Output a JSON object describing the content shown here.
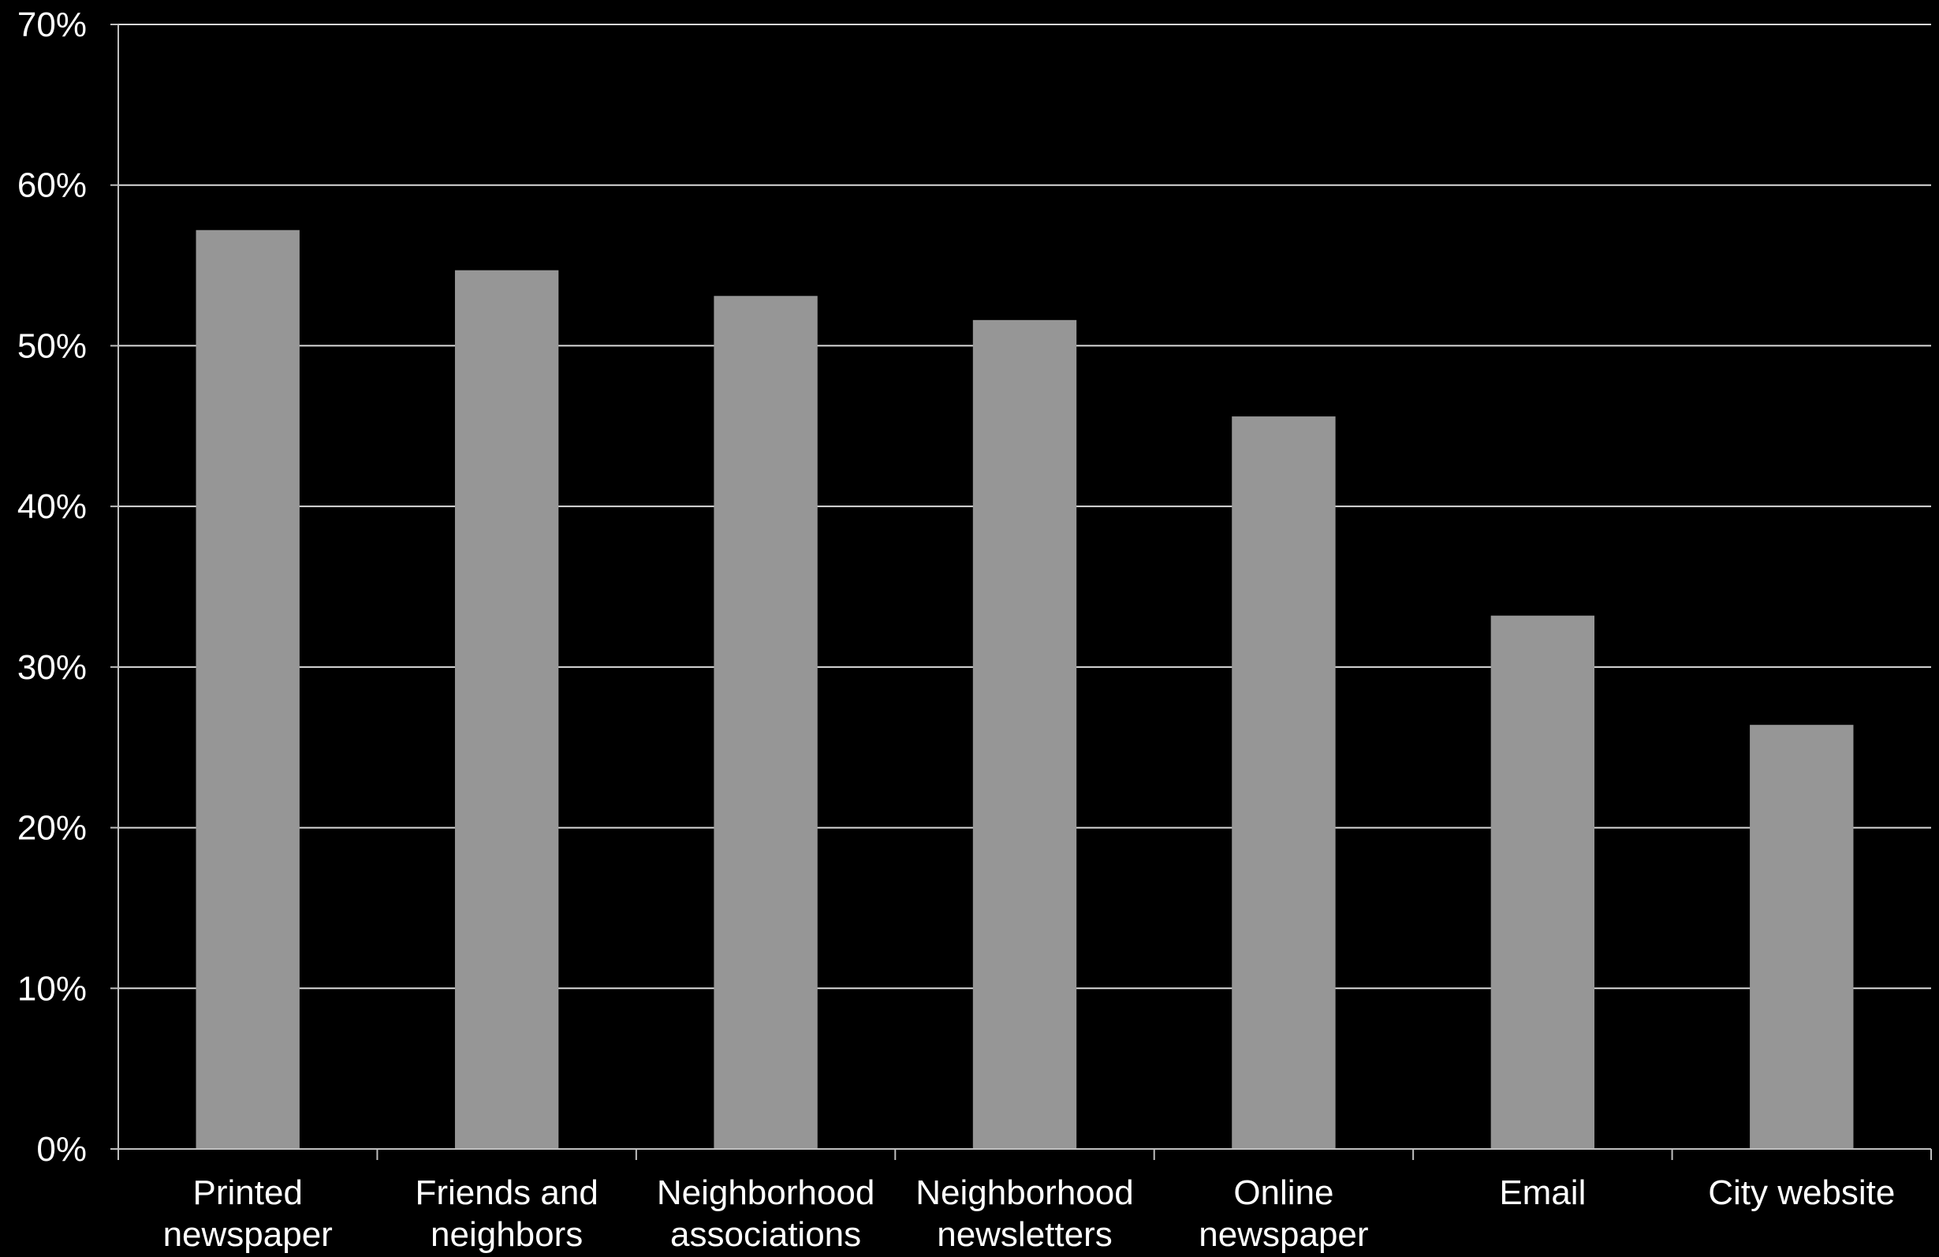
{
  "chart_data": {
    "type": "bar",
    "categories": [
      [
        "Printed",
        "newspaper"
      ],
      [
        "Friends and",
        "neighbors"
      ],
      [
        "Neighborhood",
        "associations"
      ],
      [
        "Neighborhood",
        "newsletters"
      ],
      [
        "Online",
        "newspaper"
      ],
      [
        "Email"
      ],
      [
        "City website"
      ]
    ],
    "values": [
      57.2,
      54.7,
      53.1,
      51.6,
      45.6,
      33.2,
      26.4
    ],
    "ylim": [
      0,
      70
    ],
    "yticks": [
      0,
      10,
      20,
      30,
      40,
      50,
      60,
      70
    ],
    "ytick_suffix": "%",
    "title": "",
    "xlabel": "",
    "ylabel": "",
    "grid": true,
    "colors": {
      "background": "#000000",
      "bar": "#969696",
      "grid": "#d9d9d9",
      "axis": "#bfbfbf",
      "text": "#ffffff"
    }
  }
}
